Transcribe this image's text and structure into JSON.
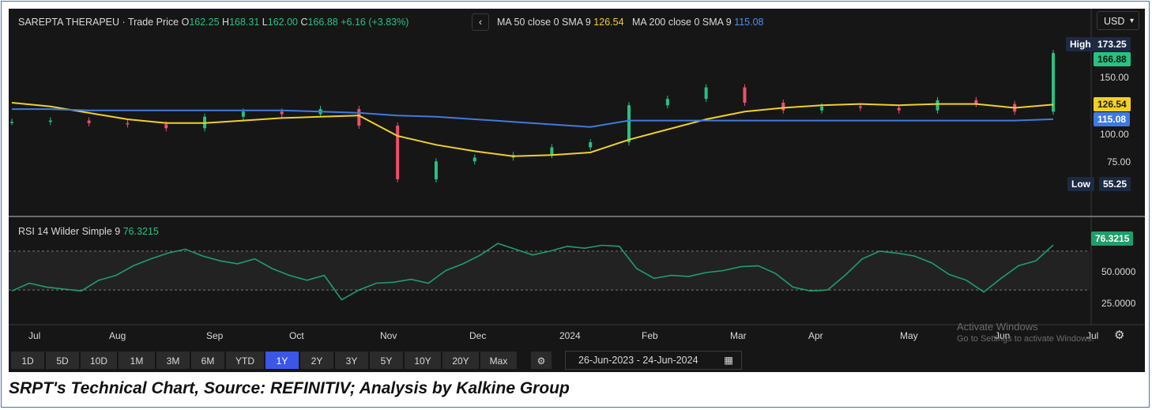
{
  "header": {
    "symbol": "SAREPTA THERAPEU",
    "sep": "·",
    "price_type": "Trade Price",
    "o_label": "O",
    "o_value": "162.25",
    "h_label": "H",
    "h_value": "168.31",
    "l_label": "L",
    "l_value": "162.00",
    "c_label": "C",
    "c_value": "166.88",
    "change": "+6.16 (+3.83%)",
    "ma50_label": "MA 50 close 0 SMA 9",
    "ma50_value": "126.54",
    "ma200_label": "MA 200 close 0 SMA 9",
    "ma200_value": "115.08",
    "collapse_icon": "‹"
  },
  "currency": {
    "value": "USD",
    "caret": "▾"
  },
  "price_axis": {
    "ticks": [
      "150.00",
      "100.00",
      "75.00"
    ],
    "high_label": "High",
    "high_value": "173.25",
    "low_label": "Low",
    "low_value": "55.25",
    "last_value": "166.88",
    "ma50_value": "126.54",
    "ma200_value": "115.08"
  },
  "rsi": {
    "label": "RSI 14 Wilder Simple 9",
    "value": "76.3215",
    "ticks": [
      "50.0000",
      "25.0000"
    ]
  },
  "time_axis": [
    "Jul",
    "Aug",
    "Sep",
    "Oct",
    "Nov",
    "Dec",
    "2024",
    "Feb",
    "Mar",
    "Apr",
    "May",
    "Jun",
    "Jul"
  ],
  "ranges": [
    "1D",
    "5D",
    "10D",
    "1M",
    "3M",
    "6M",
    "YTD",
    "1Y",
    "2Y",
    "3Y",
    "5Y",
    "10Y",
    "20Y",
    "Max"
  ],
  "selected_range": "1Y",
  "date_range": {
    "start": "26-Jun-2023",
    "sep": "-",
    "end": "24-Jun-2024"
  },
  "watermark": {
    "line1": "Activate Windows",
    "line2": "Go to Settings to activate Windows."
  },
  "caption": "SRPT's Technical Chart, Source: REFINITIV; Analysis by Kalkine Group",
  "colors": {
    "up": "#26c281",
    "down": "#ef4f6b",
    "ma50": "#f2d024",
    "ma200": "#3e7be0",
    "rsi": "#1f9e6a",
    "selected": "#3c56e8"
  },
  "chart_data": [
    {
      "type": "candlestick",
      "title": "SAREPTA THERAPEU · Trade Price",
      "x": [
        "2023-06-26",
        "2023-07-10",
        "2023-07-24",
        "2023-08-07",
        "2023-08-21",
        "2023-09-05",
        "2023-09-18",
        "2023-10-02",
        "2023-10-16",
        "2023-10-30",
        "2023-11-01",
        "2023-11-13",
        "2023-11-27",
        "2023-12-11",
        "2023-12-26",
        "2024-01-08",
        "2024-01-22",
        "2024-02-05",
        "2024-02-20",
        "2024-03-04",
        "2024-03-18",
        "2024-04-01",
        "2024-04-15",
        "2024-04-29",
        "2024-05-13",
        "2024-05-27",
        "2024-06-10",
        "2024-06-24"
      ],
      "close": [
        113,
        114,
        112,
        111,
        108,
        117,
        121,
        119,
        123,
        110,
        68,
        82,
        85,
        87,
        93,
        97,
        126,
        131,
        140,
        128,
        122,
        125,
        124,
        122,
        130,
        127,
        121,
        166.88
      ],
      "series": [
        {
          "name": "MA 50 close 0 SMA 9",
          "values": [
            128,
            125,
            120,
            115,
            112,
            112,
            114,
            116,
            117,
            118,
            102,
            95,
            90,
            86,
            87,
            89,
            99,
            107,
            115,
            121,
            124,
            126,
            127,
            126,
            127,
            127,
            124,
            126.54
          ]
        },
        {
          "name": "MA 200 close 0 SMA 9",
          "values": [
            123,
            123,
            122,
            122,
            122,
            122,
            122,
            122,
            121,
            120,
            118,
            117,
            115,
            113,
            111,
            109,
            114,
            114,
            114,
            114,
            114,
            114,
            114,
            114,
            114,
            114,
            114,
            115.08
          ]
        }
      ],
      "high": 173.25,
      "low": 55.25,
      "ylim": [
        50,
        180
      ]
    },
    {
      "type": "line",
      "title": "RSI 14 Wilder Simple 9",
      "series": [
        {
          "name": "RSI 14 Wilder Simple 9",
          "values": [
            29,
            37,
            33,
            31,
            29,
            40,
            45,
            55,
            62,
            68,
            72,
            65,
            60,
            57,
            62,
            52,
            45,
            40,
            45,
            20,
            30,
            37,
            38,
            41,
            37,
            50,
            57,
            66,
            78,
            72,
            66,
            70,
            75,
            73,
            76,
            75,
            52,
            42,
            45,
            44,
            48,
            50,
            54,
            55,
            47,
            33,
            29,
            30,
            45,
            62,
            70,
            68,
            65,
            58,
            46,
            40,
            28,
            42,
            55,
            60,
            76.3215
          ]
        }
      ],
      "ylim": [
        0,
        100
      ],
      "reference_lines": [
        30,
        70
      ]
    }
  ]
}
